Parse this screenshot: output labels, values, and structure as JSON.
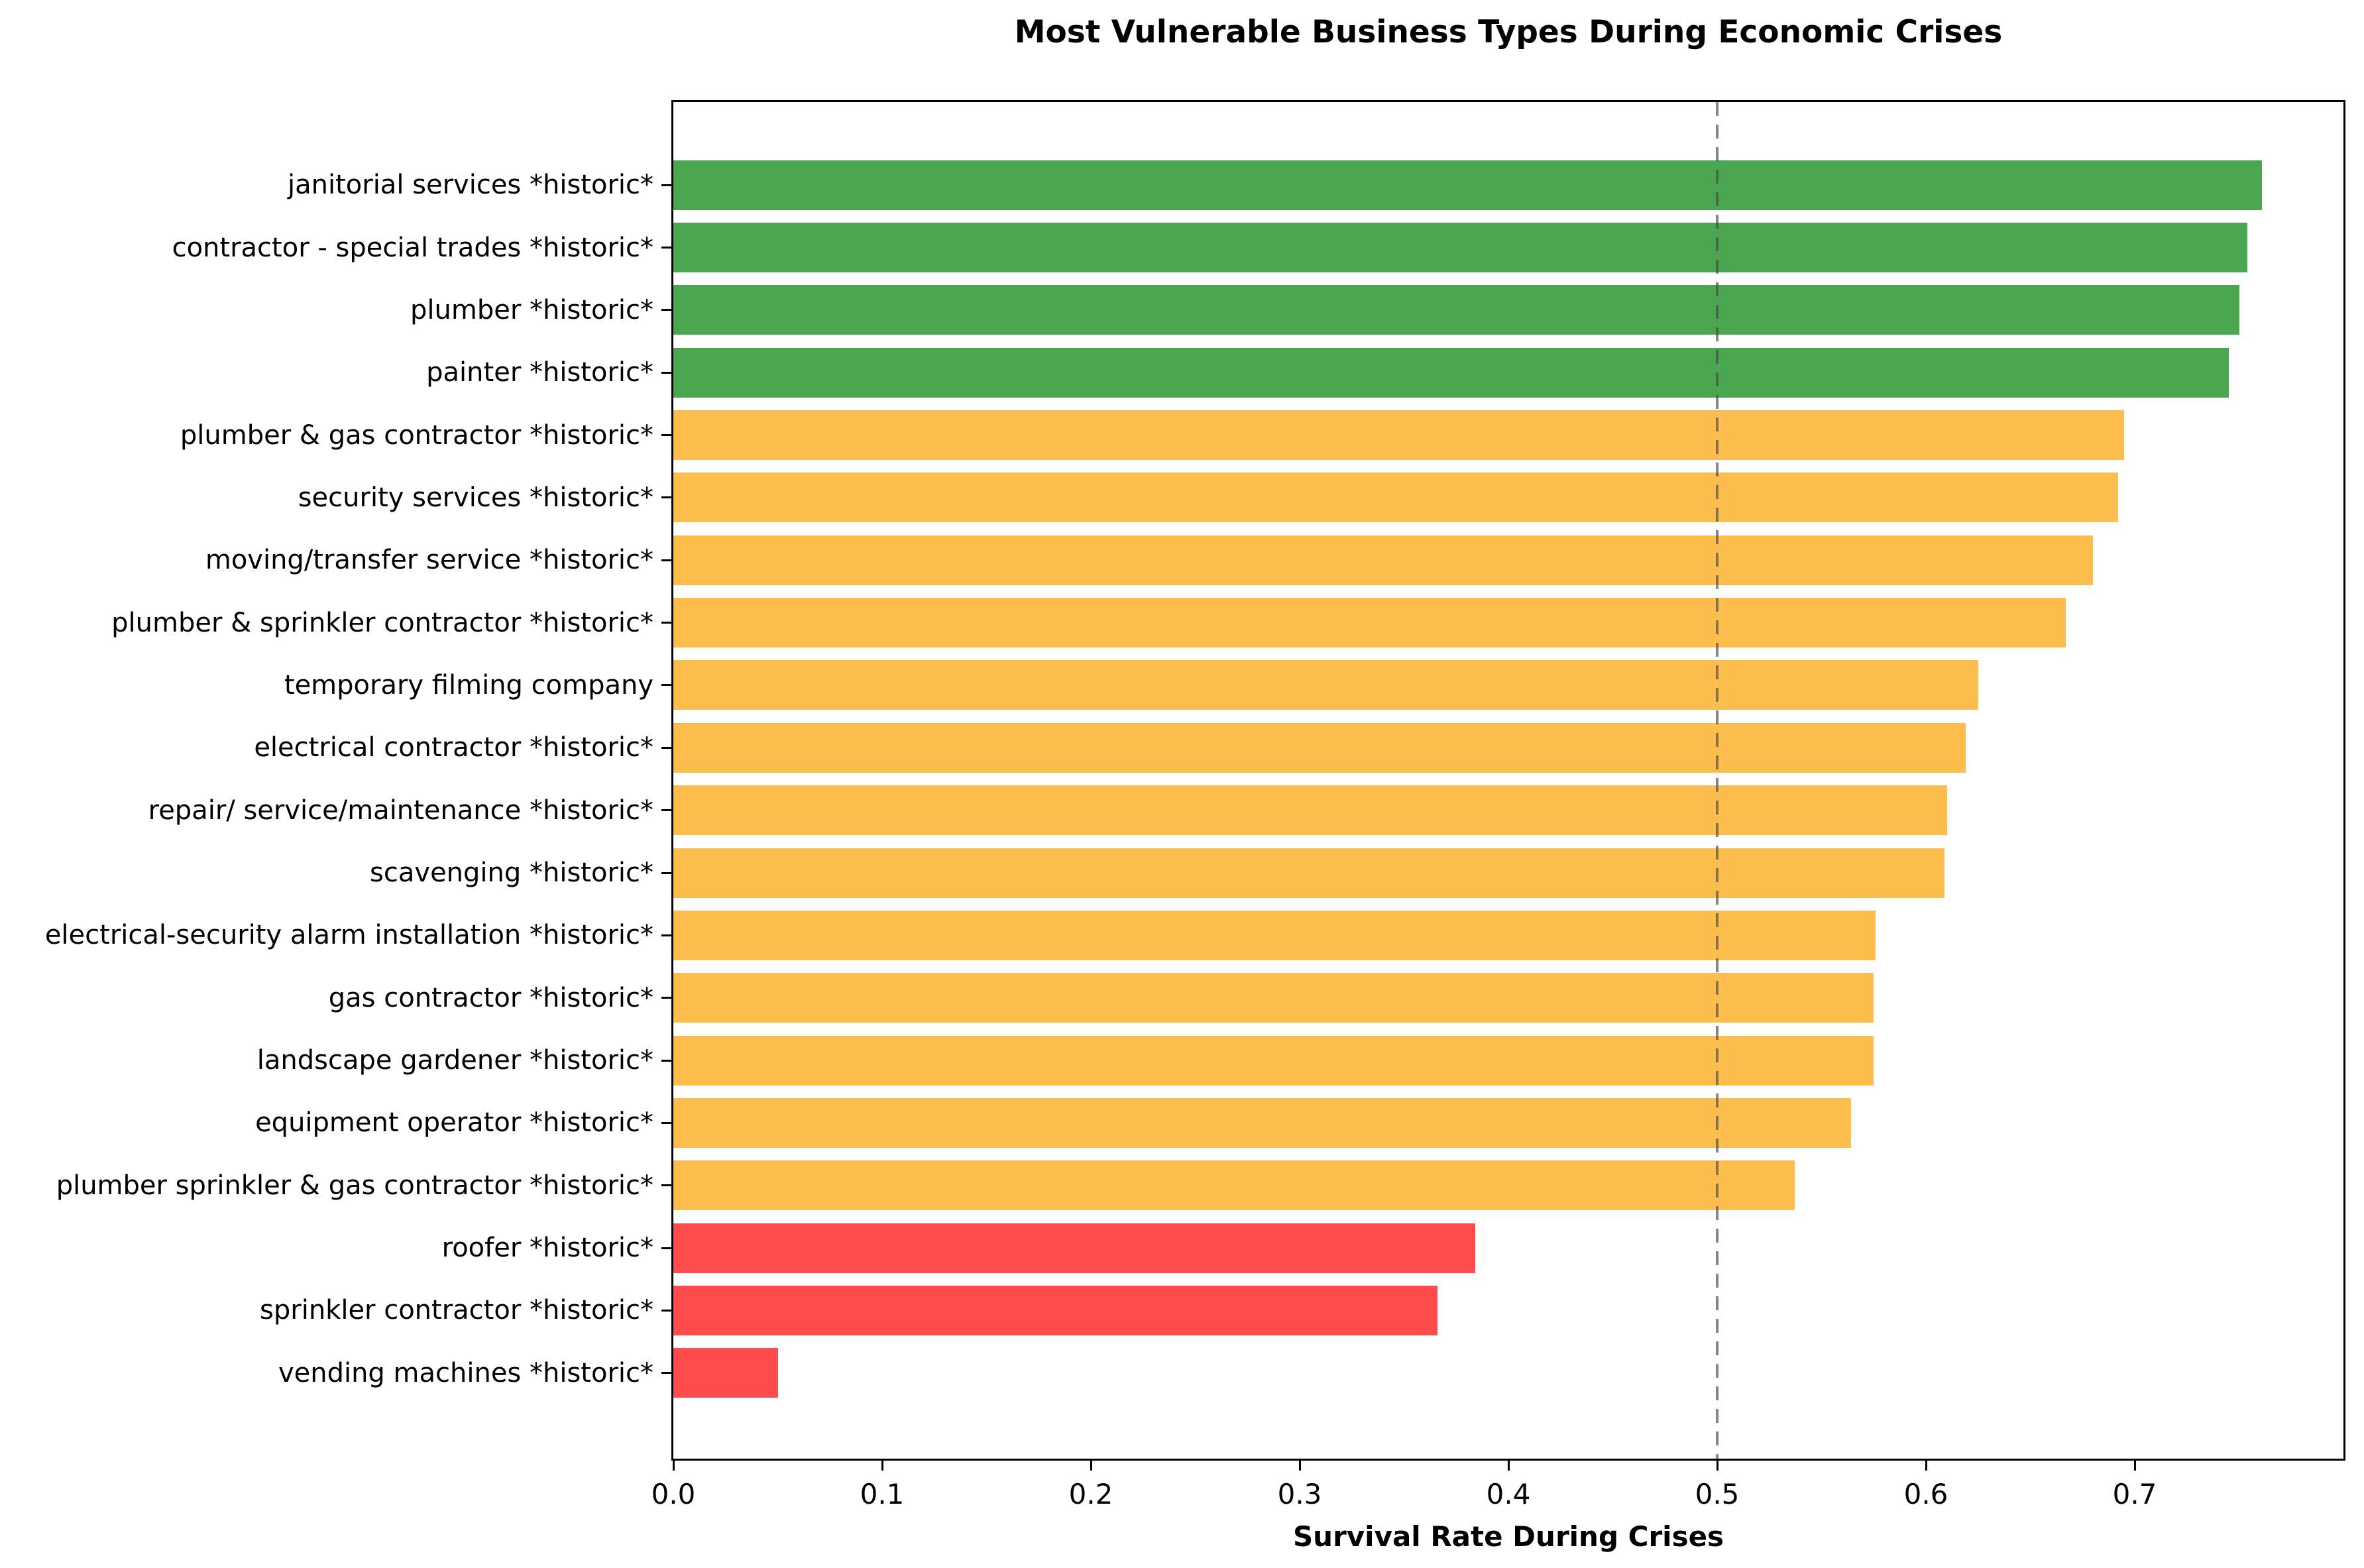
{
  "chart_data": {
    "type": "bar",
    "orientation": "horizontal",
    "title": "Most Vulnerable Business Types During Economic Crises",
    "xlabel": "Survival Rate During Crises",
    "xlim": [
      0,
      0.8
    ],
    "grid": false,
    "legend": "none",
    "xticks": [
      {
        "label": "0.0",
        "value": 0.0
      },
      {
        "label": "0.1",
        "value": 0.1
      },
      {
        "label": "0.2",
        "value": 0.2
      },
      {
        "label": "0.3",
        "value": 0.3
      },
      {
        "label": "0.4",
        "value": 0.4
      },
      {
        "label": "0.5",
        "value": 0.5
      },
      {
        "label": "0.6",
        "value": 0.6
      },
      {
        "label": "0.7",
        "value": 0.7
      }
    ],
    "reference_line": {
      "value": 0.5,
      "style": "dashed",
      "color": "#666666"
    },
    "palette": {
      "green": "#4AA64F",
      "orange": "#FDBE4E",
      "red": "#FF4D4D"
    },
    "bars": [
      {
        "label": "janitorial services *historic*",
        "value": 0.761,
        "color": "#4AA64F"
      },
      {
        "label": "contractor - special trades *historic*",
        "value": 0.754,
        "color": "#4AA64F"
      },
      {
        "label": "plumber *historic*",
        "value": 0.75,
        "color": "#4AA64F"
      },
      {
        "label": "painter *historic*",
        "value": 0.745,
        "color": "#4AA64F"
      },
      {
        "label": "plumber & gas contractor *historic*",
        "value": 0.695,
        "color": "#FDBE4E"
      },
      {
        "label": "security services *historic*",
        "value": 0.692,
        "color": "#FDBE4E"
      },
      {
        "label": "moving/transfer service *historic*",
        "value": 0.68,
        "color": "#FDBE4E"
      },
      {
        "label": "plumber & sprinkler contractor *historic*",
        "value": 0.667,
        "color": "#FDBE4E"
      },
      {
        "label": "temporary filming company",
        "value": 0.625,
        "color": "#FDBE4E"
      },
      {
        "label": "electrical contractor *historic*",
        "value": 0.619,
        "color": "#FDBE4E"
      },
      {
        "label": "repair/ service/maintenance *historic*",
        "value": 0.61,
        "color": "#FDBE4E"
      },
      {
        "label": "scavenging *historic*",
        "value": 0.609,
        "color": "#FDBE4E"
      },
      {
        "label": "electrical-security alarm installation *historic*",
        "value": 0.576,
        "color": "#FDBE4E"
      },
      {
        "label": "gas contractor *historic*",
        "value": 0.575,
        "color": "#FDBE4E"
      },
      {
        "label": "landscape gardener *historic*",
        "value": 0.575,
        "color": "#FDBE4E"
      },
      {
        "label": "equipment operator *historic*",
        "value": 0.564,
        "color": "#FDBE4E"
      },
      {
        "label": "plumber sprinkler & gas contractor *historic*",
        "value": 0.537,
        "color": "#FDBE4E"
      },
      {
        "label": "roofer *historic*",
        "value": 0.384,
        "color": "#FF4D4D"
      },
      {
        "label": "sprinkler contractor *historic*",
        "value": 0.366,
        "color": "#FF4D4D"
      },
      {
        "label": "vending machines *historic*",
        "value": 0.05,
        "color": "#FF4D4D"
      }
    ]
  }
}
